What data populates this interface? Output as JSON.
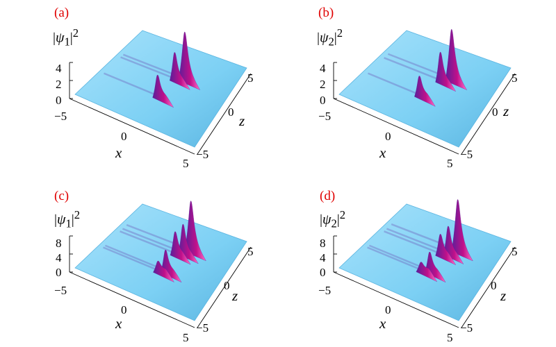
{
  "figure": {
    "panels": [
      {
        "id": "a",
        "label": "(a)",
        "z_label_html": "|&psi;<sub>1</sub>|<sup>2</sup>",
        "z_ticks": [
          "4",
          "2",
          "0"
        ],
        "x_ticks": [
          "−5",
          "0",
          "5"
        ],
        "y_ticks": [
          "5",
          "0",
          "−5"
        ],
        "x_name": "x",
        "y_name": "z",
        "peaks": [
          {
            "x": 1.0,
            "y": 1.5,
            "height": 5.0,
            "kind": "main"
          },
          {
            "x": 0.3,
            "y": 1.1,
            "height": 2.8,
            "kind": "side"
          },
          {
            "x": 0.1,
            "y": -1.4,
            "height": 2.2,
            "kind": "side"
          }
        ]
      },
      {
        "id": "b",
        "label": "(b)",
        "z_label_html": "|&psi;<sub>2</sub>|<sup>2</sup>",
        "z_ticks": [
          "4",
          "2",
          "0"
        ],
        "x_ticks": [
          "−5",
          "0",
          "5"
        ],
        "y_ticks": [
          "5",
          "0",
          "−5"
        ],
        "x_name": "x",
        "y_name": "z",
        "peaks": [
          {
            "x": 1.2,
            "y": 1.6,
            "height": 5.3,
            "kind": "main"
          },
          {
            "x": 0.5,
            "y": 1.0,
            "height": 3.0,
            "kind": "side"
          },
          {
            "x": -0.1,
            "y": -1.4,
            "height": 2.0,
            "kind": "side"
          }
        ]
      },
      {
        "id": "c",
        "label": "(c)",
        "z_label_html": "|&psi;<sub>1</sub>|<sup>2</sup>",
        "z_ticks": [
          "8",
          "4",
          "0"
        ],
        "x_ticks": [
          "−5",
          "0",
          "5"
        ],
        "y_ticks": [
          "5",
          "0",
          "−5"
        ],
        "x_name": "x",
        "y_name": "z",
        "peaks": [
          {
            "x": 1.3,
            "y": 2.0,
            "height": 9.5,
            "kind": "main"
          },
          {
            "x": 0.9,
            "y": 1.4,
            "height": 5.5,
            "kind": "side"
          },
          {
            "x": 0.4,
            "y": 1.0,
            "height": 4.2,
            "kind": "side"
          },
          {
            "x": 0.7,
            "y": -1.2,
            "height": 4.0,
            "kind": "side"
          },
          {
            "x": 0.2,
            "y": -1.5,
            "height": 1.8,
            "kind": "side"
          }
        ]
      },
      {
        "id": "d",
        "label": "(d)",
        "z_label_html": "|&psi;<sub>2</sub>|<sup>2</sup>",
        "z_ticks": [
          "8",
          "4",
          "0"
        ],
        "x_ticks": [
          "−5",
          "0",
          "5"
        ],
        "y_ticks": [
          "5",
          "0",
          "−5"
        ],
        "x_name": "x",
        "y_name": "z",
        "peaks": [
          {
            "x": 1.5,
            "y": 2.1,
            "height": 9.8,
            "kind": "main"
          },
          {
            "x": 1.0,
            "y": 1.4,
            "height": 5.2,
            "kind": "side"
          },
          {
            "x": 0.5,
            "y": 1.0,
            "height": 3.8,
            "kind": "side"
          },
          {
            "x": 0.7,
            "y": -1.2,
            "height": 3.6,
            "kind": "side"
          },
          {
            "x": 0.1,
            "y": -1.5,
            "height": 1.5,
            "kind": "side"
          }
        ]
      }
    ],
    "colors": {
      "surface": "#7cd0f4",
      "surface_light": "#a8e2fb",
      "surface_edge": "#5ab4e0",
      "peak_dark": "#5a1e9a",
      "peak_mid": "#c0108a",
      "peak_light": "#ff6ec8",
      "label": "#e00000"
    }
  }
}
